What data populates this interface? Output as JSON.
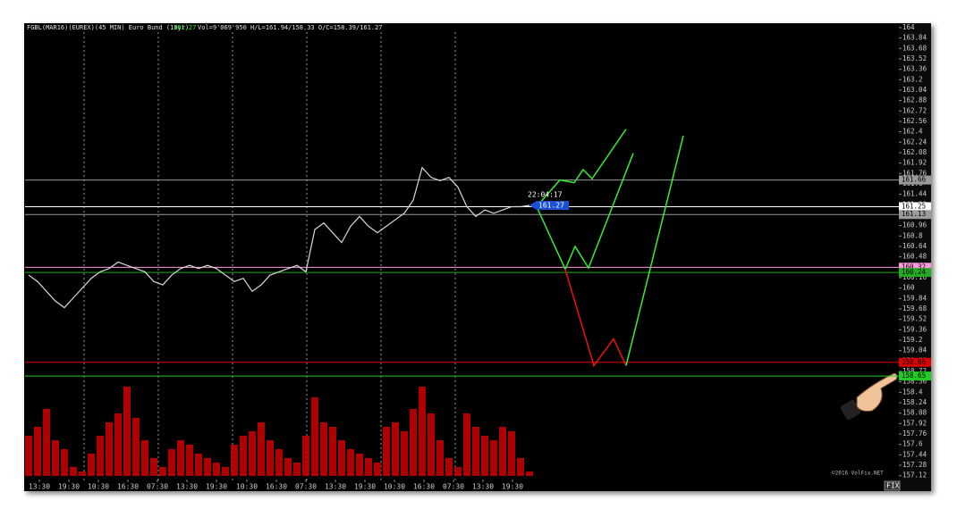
{
  "chart_data": {
    "type": "line",
    "title": "FGBL(MAR16)(EUREX)(45 MIN) Euro Bund (10yr)",
    "header_stats": "Vol=9'069'950 H/L=161.94/158.33 O/C=158.39/161.27",
    "current_price": 161.27,
    "current_time": "22:04:17",
    "copyright": "©2016 VolFix.NET",
    "button": "FIX",
    "xlim": [
      -0.4,
      97.3
    ],
    "ylim": [
      157.02,
      164.04
    ],
    "yticks": [
      164,
      163.84,
      163.68,
      163.52,
      163.36,
      163.2,
      163.04,
      162.88,
      162.72,
      162.56,
      162.4,
      162.24,
      162.08,
      161.92,
      161.76,
      161.6,
      161.44,
      161.28,
      161.12,
      160.96,
      160.8,
      160.64,
      160.48,
      160.32,
      160.16,
      160,
      159.84,
      159.68,
      159.52,
      159.36,
      159.2,
      159.04,
      158.88,
      158.72,
      158.56,
      158.4,
      158.24,
      158.08,
      157.92,
      157.76,
      157.6,
      157.44,
      157.28,
      157.12
    ],
    "xticks": [
      {
        "value": 1.2,
        "label": "13:30"
      },
      {
        "value": 4.5,
        "label": "19:30"
      },
      {
        "value": 7.8,
        "label": "10:30"
      },
      {
        "value": 11.1,
        "label": "16:30"
      },
      {
        "value": 14.4,
        "label": "07:30"
      },
      {
        "value": 17.7,
        "label": "13:30"
      },
      {
        "value": 21,
        "label": "19:30"
      },
      {
        "value": 24.4,
        "label": "10:30"
      },
      {
        "value": 27.7,
        "label": "16:30"
      },
      {
        "value": 31,
        "label": "07:30"
      },
      {
        "value": 34.3,
        "label": "13:30"
      },
      {
        "value": 37.6,
        "label": "19:30"
      },
      {
        "value": 40.9,
        "label": "10:30"
      },
      {
        "value": 44.2,
        "label": "16:30"
      },
      {
        "value": 47.5,
        "label": "07:30"
      },
      {
        "value": 50.8,
        "label": "13:30"
      },
      {
        "value": 54.1,
        "label": "19:30"
      }
    ],
    "session_breaks": [
      6.2,
      14.5,
      22.8,
      31.1,
      39.4,
      47.7
    ],
    "x": [
      0,
      1,
      2,
      3,
      4,
      5,
      6,
      7,
      8,
      9,
      10,
      11,
      12,
      13,
      14,
      15,
      16,
      17,
      18,
      19,
      20,
      21,
      22,
      23,
      24,
      25,
      26,
      27,
      28,
      29,
      30,
      31,
      32,
      33,
      34,
      35,
      36,
      37,
      38,
      39,
      40,
      41,
      42,
      43,
      44,
      45,
      46,
      47,
      48,
      49,
      50,
      51,
      52,
      53,
      54,
      55,
      56
    ],
    "series": [
      {
        "name": "Close",
        "color": "#d9d9d9",
        "values": [
          160.2,
          160.1,
          159.95,
          159.8,
          159.7,
          159.85,
          160,
          160.15,
          160.25,
          160.3,
          160.4,
          160.35,
          160.3,
          160.25,
          160.1,
          160.05,
          160.2,
          160.3,
          160.35,
          160.3,
          160.35,
          160.3,
          160.2,
          160.1,
          160.15,
          159.95,
          160.05,
          160.2,
          160.25,
          160.3,
          160.35,
          160.25,
          160.9,
          161,
          160.85,
          160.7,
          160.95,
          161.1,
          160.95,
          160.85,
          160.95,
          161.05,
          161.15,
          161.35,
          161.85,
          161.7,
          161.65,
          161.7,
          161.55,
          161.25,
          161.1,
          161.2,
          161.15,
          161.2,
          161.25,
          161.25,
          161.27
        ]
      }
    ],
    "volume": {
      "color": "#cc0000",
      "values": [
        45,
        55,
        75,
        40,
        30,
        10,
        5,
        25,
        45,
        60,
        70,
        100,
        65,
        40,
        20,
        10,
        30,
        40,
        35,
        25,
        20,
        15,
        10,
        35,
        45,
        50,
        60,
        40,
        30,
        20,
        15,
        45,
        88,
        60,
        55,
        40,
        30,
        25,
        20,
        15,
        55,
        60,
        50,
        75,
        100,
        70,
        40,
        20,
        10,
        70,
        55,
        45,
        40,
        55,
        50,
        20,
        5
      ]
    },
    "levels": [
      {
        "value": 161.66,
        "color": "#9a9a9a"
      },
      {
        "value": 161.25,
        "color": "#ffffff"
      },
      {
        "value": 161.13,
        "color": "#9a9a9a"
      },
      {
        "value": 160.32,
        "color": "#ff99dd"
      },
      {
        "value": 160.24,
        "color": "#22aa22"
      },
      {
        "value": 158.86,
        "color": "#dd0000"
      },
      {
        "value": 158.65,
        "color": "#22cc22"
      }
    ],
    "projections": [
      {
        "color": "#33ee33",
        "x": [
          56.8,
          59.4,
          61,
          62,
          63,
          66.8
        ],
        "values": [
          161.25,
          161.66,
          161.62,
          161.82,
          161.68,
          162.44
        ]
      },
      {
        "color": "#33ee33",
        "x": [
          56.8,
          60,
          61.1,
          62.6,
          67.6
        ],
        "values": [
          161.25,
          160.29,
          160.64,
          160.31,
          162.07
        ]
      },
      {
        "color": "#ee1111",
        "x": [
          60,
          63.2,
          65.4,
          66.8
        ],
        "values": [
          160.29,
          158.81,
          159.22,
          158.81
        ]
      },
      {
        "color": "#33ee33",
        "x": [
          66.8,
          73.2
        ],
        "values": [
          158.81,
          162.34
        ]
      }
    ]
  }
}
